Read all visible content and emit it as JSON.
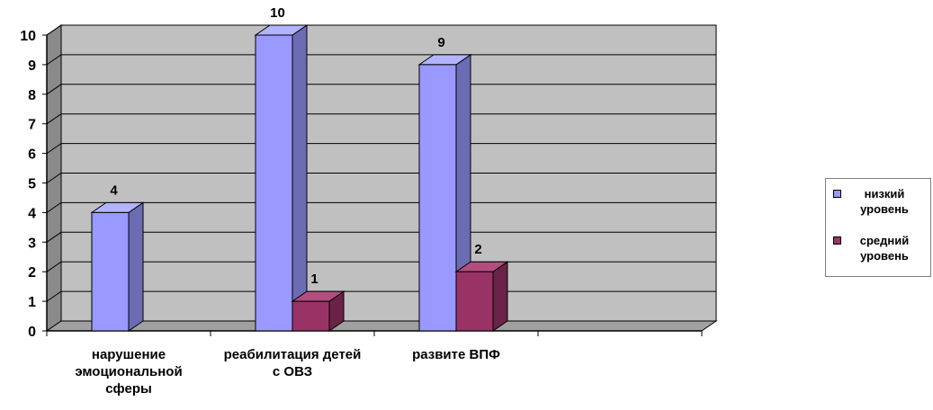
{
  "chart_data": {
    "type": "bar",
    "style": "3d-clustered-column",
    "categories": [
      "нарушение эмоциональной сферы",
      "реабилитация детей с ОВЗ",
      "развите ВПФ",
      ""
    ],
    "category_label_lines": [
      [
        "нарушение",
        "эмоциональной",
        "сферы"
      ],
      [
        "реабилитация детей",
        "с ОВЗ"
      ],
      [
        "развите ВПФ"
      ],
      []
    ],
    "series": [
      {
        "name": "низкий уровень",
        "values": [
          4,
          10,
          9,
          null
        ],
        "color": "#9999FF",
        "side_color": "#6C6CB4",
        "top_color": "#B3B3FF"
      },
      {
        "name": "средний уровень",
        "values": [
          null,
          1,
          2,
          null
        ],
        "color": "#993366",
        "side_color": "#6A2347",
        "top_color": "#B34D80"
      }
    ],
    "data_labels": true,
    "yticks": [
      0,
      1,
      2,
      3,
      4,
      5,
      6,
      7,
      8,
      9,
      10
    ],
    "ylim": [
      0,
      10
    ],
    "grid": true,
    "legend_position": "right",
    "wall_color": "#C0C0C0"
  },
  "legend": {
    "items": [
      {
        "label": "низкий уровень",
        "color": "#9999FF"
      },
      {
        "label": "средний уровень",
        "color": "#993366"
      }
    ]
  }
}
